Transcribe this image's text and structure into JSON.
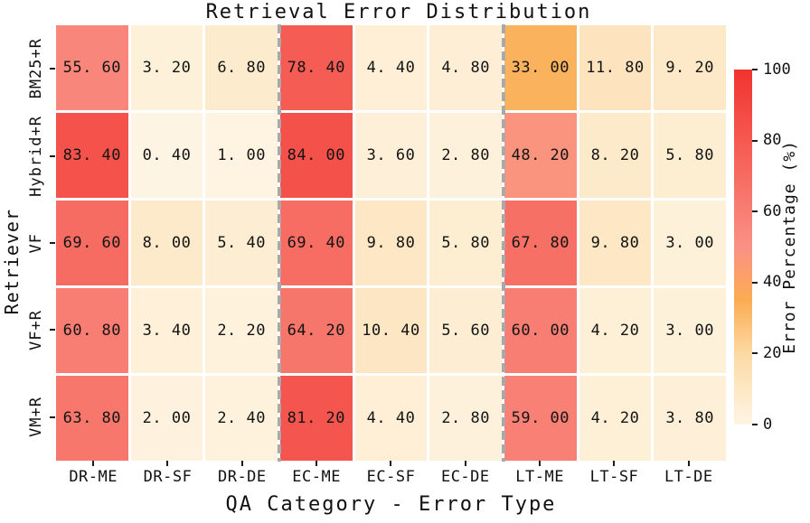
{
  "figure": {
    "title": "Retrieval Error Distribution",
    "x_axis_label": "QA Category - Error Type",
    "y_axis_label": "Retriever",
    "background_color": "#ffffff",
    "text_color": "#111111",
    "separator_line_color": "#a9a9a9"
  },
  "colorbar": {
    "label": "Error Percentage (%)",
    "tick_labels": [
      "100",
      "80",
      "60",
      "40",
      "20",
      "0"
    ],
    "min": 0,
    "max": 100,
    "gradient_stops": [
      {
        "value": 0,
        "color": "#FEF5E4"
      },
      {
        "value": 20,
        "color": "#FCD9A4"
      },
      {
        "value": 35,
        "color": "#FBAC52"
      },
      {
        "value": 50,
        "color": "#FA9184"
      },
      {
        "value": 100,
        "color": "#F1332F"
      }
    ]
  },
  "chart_data": {
    "type": "heatmap",
    "title": "Retrieval Error Distribution",
    "xlabel": "QA Category - Error Type",
    "ylabel": "Retriever",
    "categories": [
      "DR-ME",
      "DR-SF",
      "DR-DE",
      "EC-ME",
      "EC-SF",
      "EC-DE",
      "LT-ME",
      "LT-SF",
      "LT-DE"
    ],
    "rows": [
      "BM25+R",
      "Hybrid+R",
      "VF",
      "VF+R",
      "VM+R"
    ],
    "series": [
      {
        "name": "BM25+R",
        "values": [
          55.6,
          3.2,
          6.8,
          78.4,
          4.4,
          4.8,
          33.0,
          11.8,
          9.2
        ]
      },
      {
        "name": "Hybrid+R",
        "values": [
          83.4,
          0.4,
          1.0,
          84.0,
          3.6,
          2.8,
          48.2,
          8.2,
          5.8
        ]
      },
      {
        "name": "VF",
        "values": [
          69.6,
          8.0,
          5.4,
          69.4,
          9.8,
          5.8,
          67.8,
          9.8,
          3.0
        ]
      },
      {
        "name": "VF+R",
        "values": [
          60.8,
          3.4,
          2.2,
          64.2,
          10.4,
          5.6,
          60.0,
          4.2,
          3.0
        ]
      },
      {
        "name": "VM+R",
        "values": [
          63.8,
          2.0,
          2.4,
          81.2,
          4.4,
          2.8,
          59.0,
          4.2,
          3.8
        ]
      }
    ],
    "value_range": [
      0,
      100
    ],
    "value_decimals": 2,
    "group_separators_after_columns": [
      3,
      6
    ],
    "legend_position": "right-colorbar",
    "grid": false
  }
}
